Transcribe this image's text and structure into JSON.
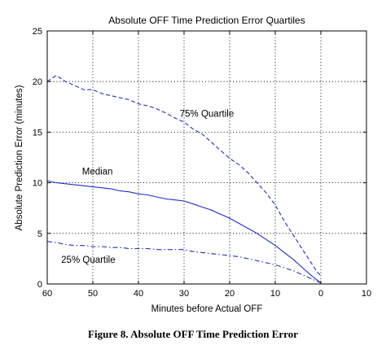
{
  "figure": {
    "caption": "Figure 8. Absolute OFF Time Prediction Error"
  },
  "colors": {
    "series": "#1f2fc9",
    "axes": "#000000"
  },
  "chart_data": {
    "type": "line",
    "title": "Absolute OFF Time Prediction Error Quartiles",
    "xlabel": "Minutes before Actual OFF",
    "ylabel": "Absolute Prediction Error (minutes)",
    "xlim": [
      60,
      -10
    ],
    "ylim": [
      0,
      25
    ],
    "x_reversed": true,
    "x_ticks": [
      60,
      50,
      40,
      30,
      20,
      10,
      0,
      -10
    ],
    "x_tick_labels": [
      "60",
      "50",
      "40",
      "30",
      "20",
      "10",
      "0",
      "10"
    ],
    "y_ticks": [
      0,
      5,
      10,
      15,
      20,
      25
    ],
    "grid": true,
    "annotations": [
      {
        "text": "75% Quartile",
        "x": 25,
        "y": 16.5
      },
      {
        "text": "Median",
        "x": 49,
        "y": 10.8
      },
      {
        "text": "25% Quartile",
        "x": 51,
        "y": 2.1
      }
    ],
    "series": [
      {
        "style": "dashed",
        "x": [
          60,
          58,
          56,
          54,
          52,
          50,
          48,
          46,
          44,
          42,
          40,
          38,
          36,
          34,
          32,
          30,
          28,
          26,
          24,
          22,
          20,
          18,
          16,
          14,
          12,
          10,
          8,
          6,
          4,
          2,
          1,
          0
        ],
        "y": [
          20.0,
          20.6,
          20.0,
          19.6,
          19.2,
          19.2,
          18.8,
          18.6,
          18.4,
          18.2,
          17.8,
          17.6,
          17.3,
          16.9,
          16.4,
          16.0,
          15.3,
          14.8,
          14.0,
          13.2,
          12.4,
          11.8,
          11.0,
          10.0,
          9.0,
          7.8,
          6.2,
          4.8,
          3.4,
          2.0,
          1.3,
          0.8
        ]
      },
      {
        "style": "solid",
        "x": [
          60,
          58,
          56,
          54,
          52,
          50,
          48,
          46,
          44,
          42,
          40,
          38,
          36,
          34,
          32,
          30,
          28,
          26,
          24,
          22,
          20,
          18,
          16,
          14,
          12,
          10,
          8,
          6,
          4,
          2,
          0
        ],
        "y": [
          10.2,
          10.0,
          9.9,
          9.8,
          9.7,
          9.6,
          9.5,
          9.4,
          9.2,
          9.1,
          8.9,
          8.8,
          8.6,
          8.4,
          8.3,
          8.2,
          7.9,
          7.6,
          7.3,
          6.9,
          6.5,
          6.0,
          5.5,
          5.0,
          4.4,
          3.8,
          3.1,
          2.4,
          1.6,
          0.8,
          0.1
        ]
      },
      {
        "style": "dashdot",
        "x": [
          60,
          58,
          56,
          54,
          52,
          50,
          48,
          46,
          44,
          42,
          40,
          38,
          36,
          34,
          32,
          30,
          28,
          26,
          24,
          22,
          20,
          18,
          16,
          14,
          12,
          10,
          8,
          6,
          4,
          2,
          0
        ],
        "y": [
          4.2,
          4.1,
          3.9,
          3.8,
          3.8,
          3.7,
          3.7,
          3.6,
          3.6,
          3.5,
          3.5,
          3.5,
          3.4,
          3.4,
          3.4,
          3.4,
          3.2,
          3.1,
          3.0,
          2.9,
          2.8,
          2.7,
          2.5,
          2.3,
          2.1,
          1.9,
          1.6,
          1.3,
          0.9,
          0.5,
          0.1
        ]
      }
    ]
  }
}
